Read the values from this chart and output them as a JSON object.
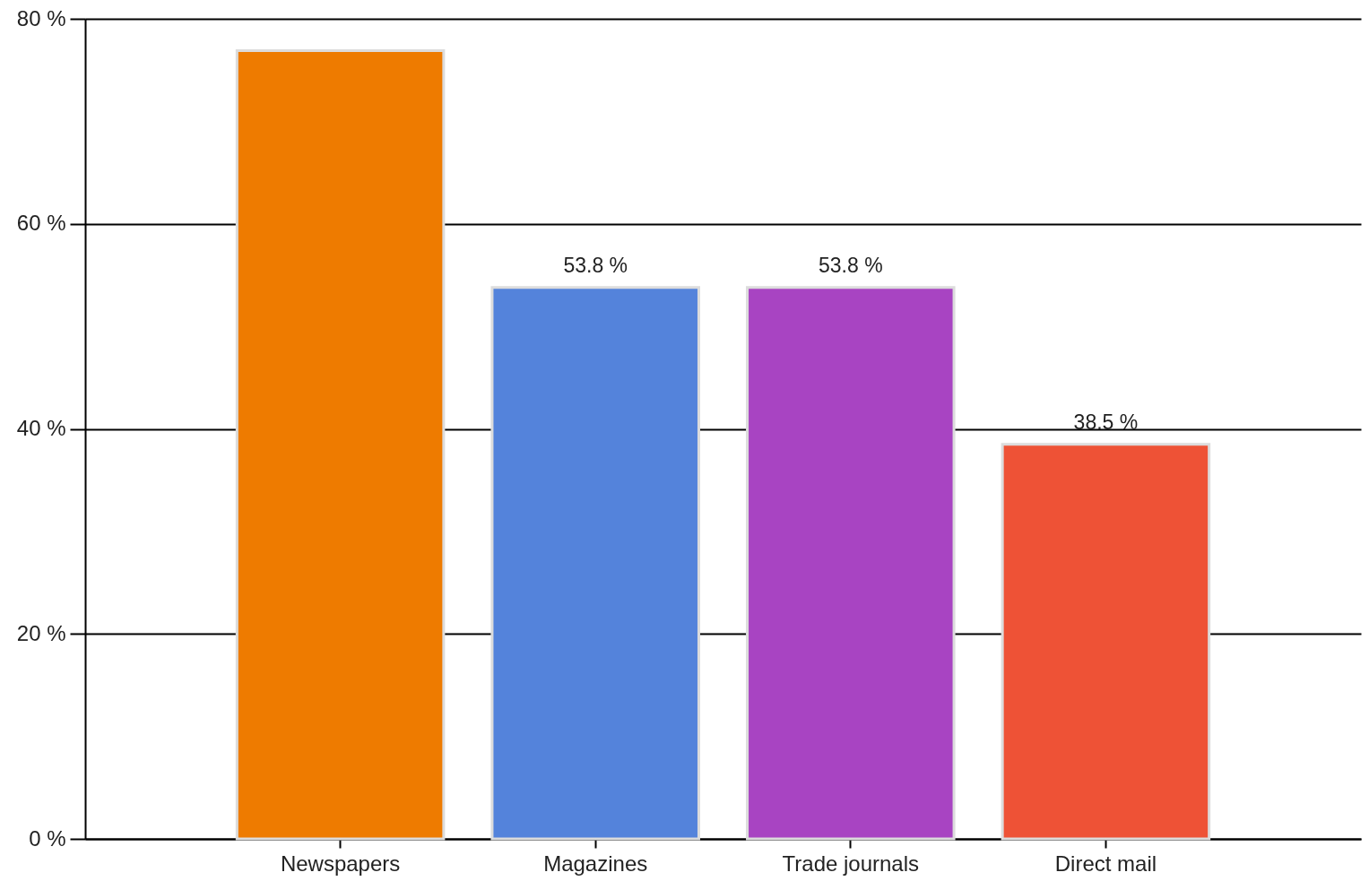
{
  "chart_data": {
    "type": "bar",
    "categories": [
      "Newspapers",
      "Magazines",
      "Trade journals",
      "Direct mail"
    ],
    "values": [
      76.9,
      53.8,
      53.8,
      38.5
    ],
    "colors": [
      "#ee7b00",
      "#5483db",
      "#a844c2",
      "#ee5236"
    ],
    "value_labels": [
      null,
      "53.8 %",
      "53.8 %",
      "38.5 %"
    ],
    "ylim": [
      0,
      80
    ],
    "yticks": [
      {
        "value": 0,
        "label": "0 %"
      },
      {
        "value": 20,
        "label": "20 %"
      },
      {
        "value": 40,
        "label": "40 %"
      },
      {
        "value": 60,
        "label": "60 %"
      },
      {
        "value": 80,
        "label": "80 %"
      }
    ],
    "grid": "y",
    "legend": false
  }
}
